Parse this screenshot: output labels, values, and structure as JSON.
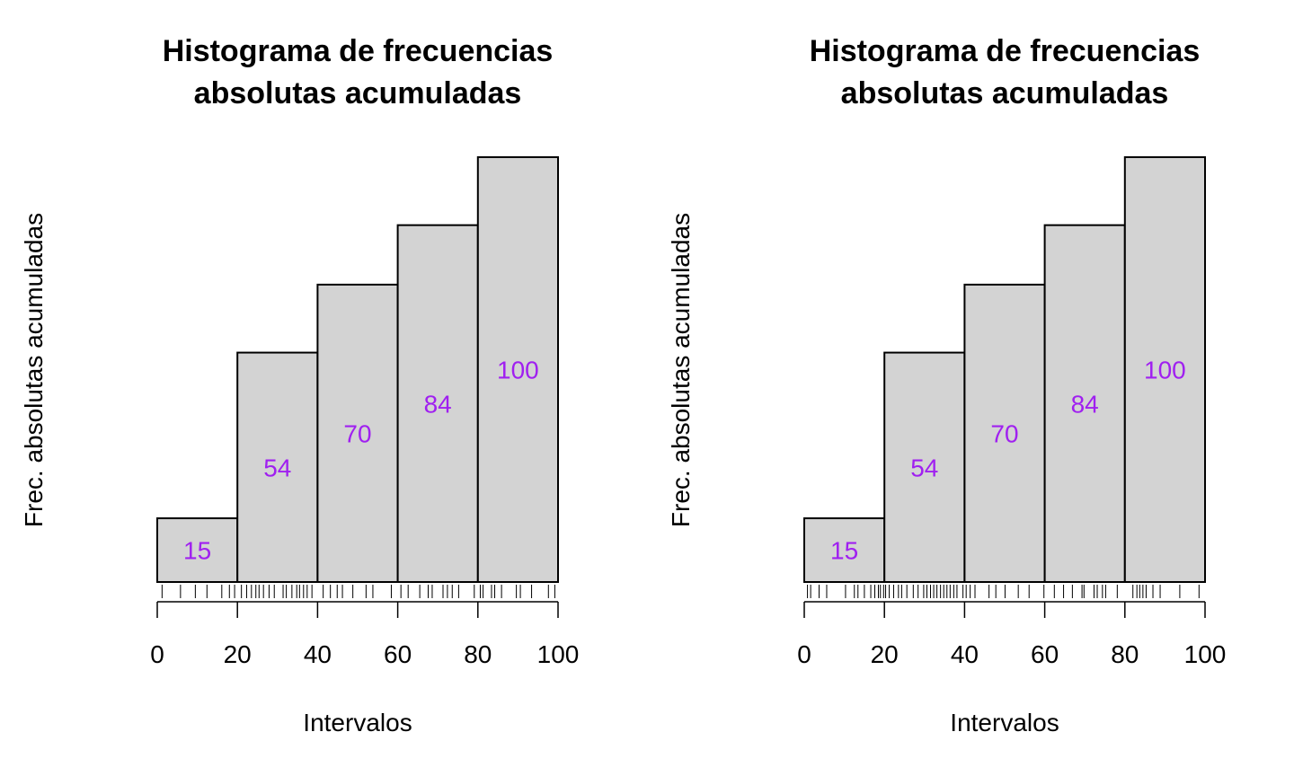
{
  "chart_data": [
    {
      "type": "bar",
      "title_line1": "Histograma de frecuencias",
      "title_line2": "absolutas acumuladas",
      "xlabel": "Intervalos",
      "ylabel": "Frec. absolutas acumuladas",
      "bins": [
        [
          0,
          20
        ],
        [
          20,
          40
        ],
        [
          40,
          60
        ],
        [
          60,
          80
        ],
        [
          80,
          100
        ]
      ],
      "values": [
        15,
        54,
        70,
        84,
        100
      ],
      "data_labels": [
        "15",
        "54",
        "70",
        "84",
        "100"
      ],
      "xlim": [
        0,
        100
      ],
      "ylim": [
        0,
        100
      ],
      "xticks": [
        "0",
        "20",
        "40",
        "60",
        "80",
        "100"
      ],
      "grid": false,
      "bar_color": "#d3d3d3",
      "label_color": "#a020f0",
      "rug": [
        1.2,
        5.8,
        9.5,
        12.4,
        16.1,
        18.0,
        19.3,
        21.0,
        22.3,
        23.5,
        24.6,
        25.4,
        26.5,
        27.9,
        29.2,
        31.4,
        32.2,
        33.6,
        34.8,
        35.5,
        36.5,
        37.4,
        38.6,
        41.4,
        43.2,
        44.9,
        46.2,
        48.8,
        52.1,
        53.8,
        58.4,
        60.8,
        62.6,
        65.5,
        67.6,
        68.6,
        71.3,
        72.4,
        73.6,
        75.2,
        79.1,
        80.6,
        81.3,
        83.4,
        84.2,
        85.9,
        89.6,
        90.6,
        93.4,
        97.6,
        99.2
      ]
    },
    {
      "type": "bar",
      "title_line1": "Histograma de frecuencias",
      "title_line2": "absolutas acumuladas",
      "xlabel": "Intervalos",
      "ylabel": "Frec. absolutas acumuladas",
      "bins": [
        [
          0,
          20
        ],
        [
          20,
          40
        ],
        [
          40,
          60
        ],
        [
          60,
          80
        ],
        [
          80,
          100
        ]
      ],
      "values": [
        15,
        54,
        70,
        84,
        100
      ],
      "data_labels": [
        "15",
        "54",
        "70",
        "84",
        "100"
      ],
      "xlim": [
        0,
        100
      ],
      "ylim": [
        0,
        100
      ],
      "xticks": [
        "0",
        "20",
        "40",
        "60",
        "80",
        "100"
      ],
      "grid": false,
      "bar_color": "#d3d3d3",
      "label_color": "#a020f0",
      "rug": [
        0.8,
        1.6,
        3.7,
        5.6,
        10.3,
        12.5,
        13.4,
        15.0,
        16.6,
        17.6,
        18.5,
        19.0,
        19.8,
        20.3,
        21.2,
        22.3,
        23.5,
        24.3,
        25.6,
        27.2,
        28.4,
        29.8,
        30.6,
        31.5,
        32.3,
        33.1,
        34.0,
        34.8,
        35.6,
        36.4,
        37.3,
        38.1,
        39.6,
        40.4,
        41.4,
        42.6,
        46.1,
        47.8,
        50.1,
        53.4,
        56.1,
        59.8,
        62.4,
        64.7,
        66.9,
        69.3,
        69.8,
        72.3,
        73.1,
        74.4,
        75.2,
        78.1,
        82.0,
        83.0,
        83.7,
        84.5,
        85.3,
        87.0,
        88.8,
        93.7,
        98.5
      ]
    }
  ]
}
